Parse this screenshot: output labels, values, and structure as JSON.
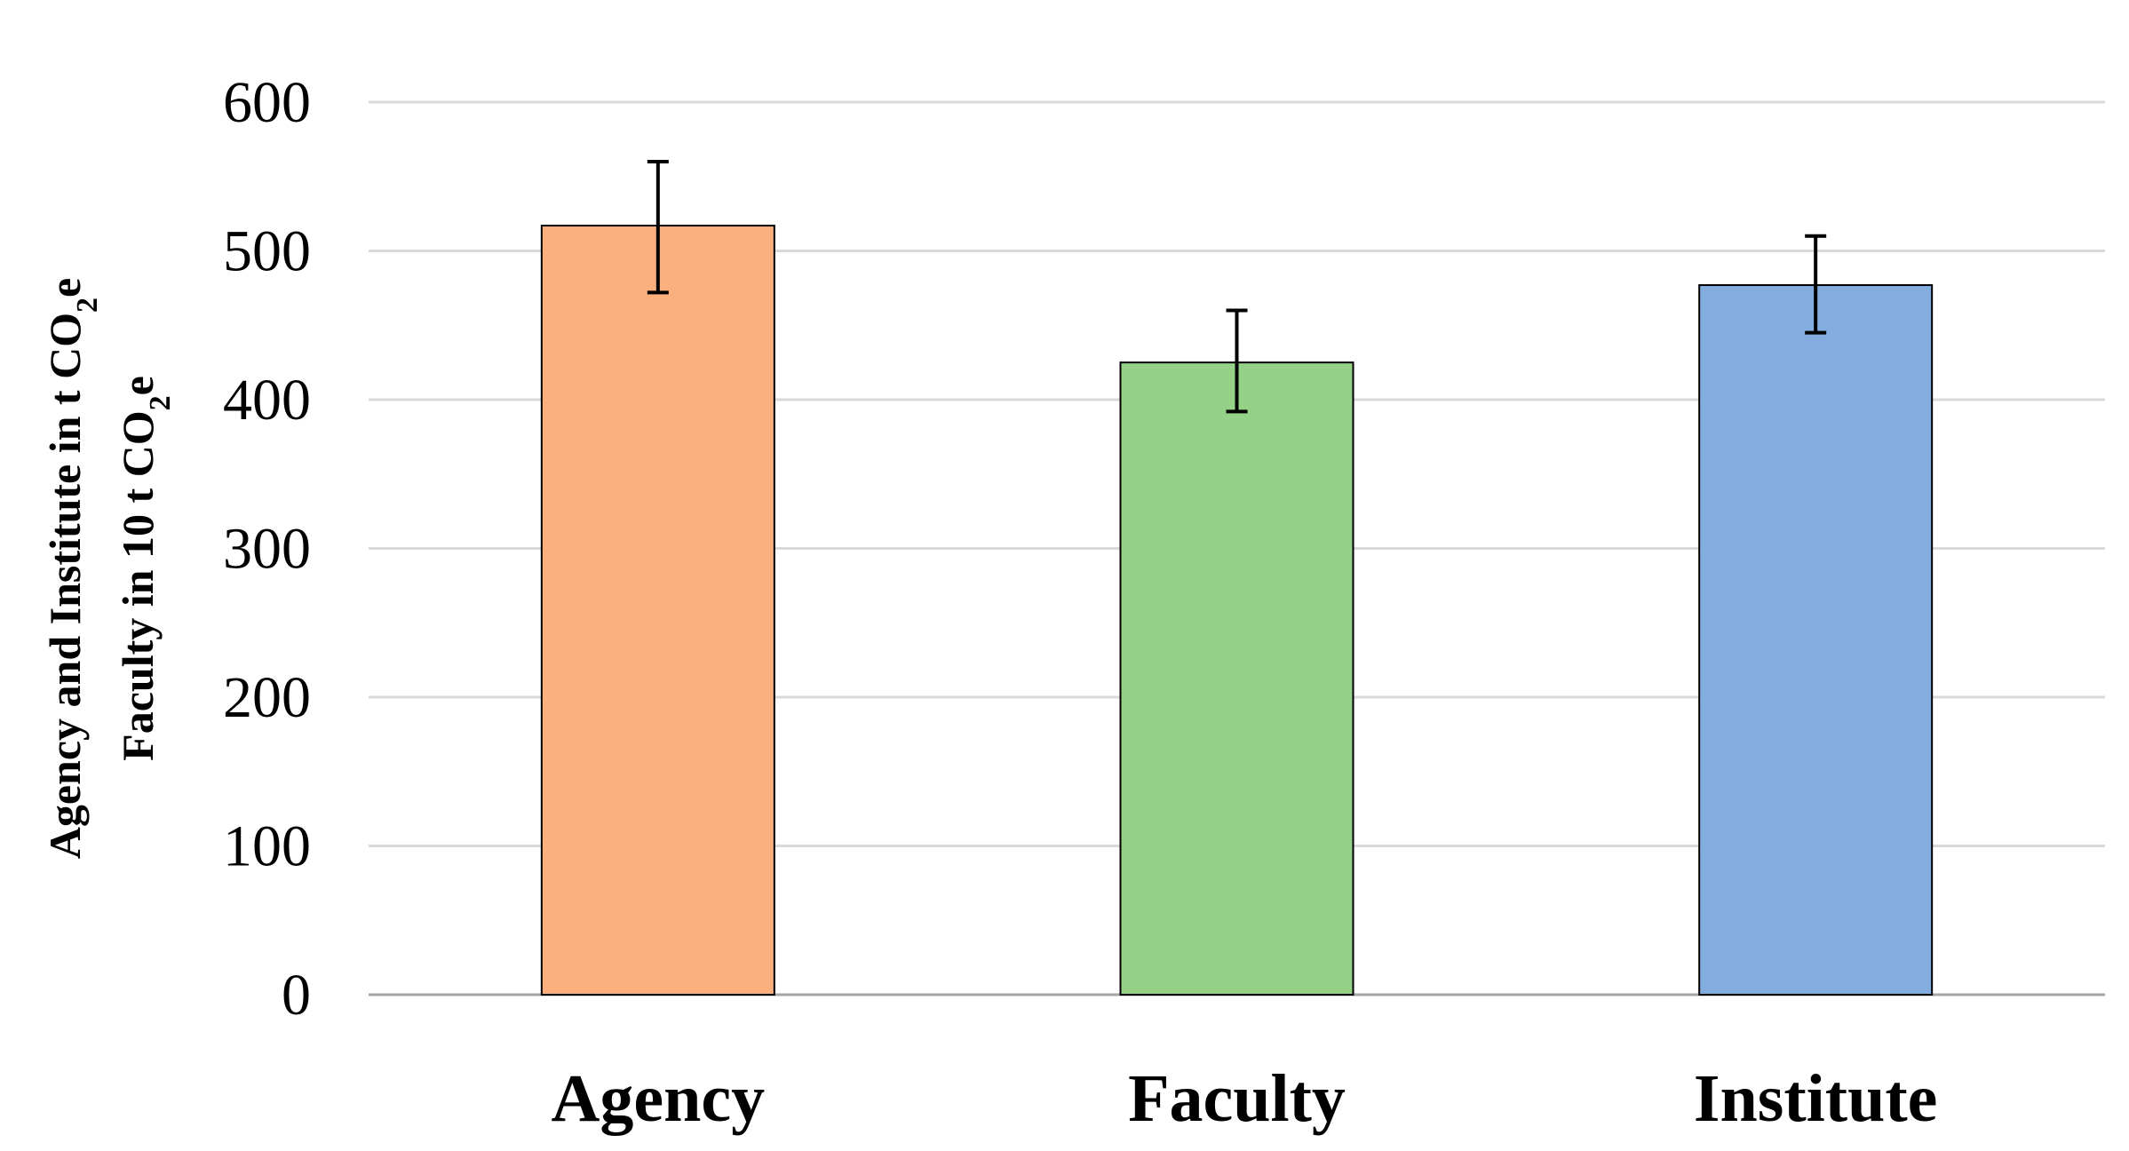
{
  "chart_data": {
    "type": "bar",
    "categories": [
      "Agency",
      "Faculty",
      "Institute"
    ],
    "values": [
      517,
      425,
      477
    ],
    "error_bars": [
      {
        "low": 472,
        "high": 560
      },
      {
        "low": 392,
        "high": 460
      },
      {
        "low": 445,
        "high": 510
      }
    ],
    "colors": [
      "#FBB07E",
      "#95D288",
      "#83ACDF"
    ],
    "ylim": [
      0,
      600
    ],
    "yticks": [
      0,
      100,
      200,
      300,
      400,
      500,
      600
    ],
    "ytick_labels": [
      "0",
      "100",
      "200",
      "300",
      "400",
      "500",
      "600"
    ],
    "ylabel": {
      "line1": "Agency and Institute in t CO",
      "line1_sub": "2",
      "line1_end": "e",
      "line2": "Faculty in 10 t CO",
      "line2_sub": "2",
      "line2_end": "e"
    },
    "xlabel": "",
    "title": "",
    "grid": true,
    "grid_color": "#D9D9D9",
    "legend": "none"
  }
}
